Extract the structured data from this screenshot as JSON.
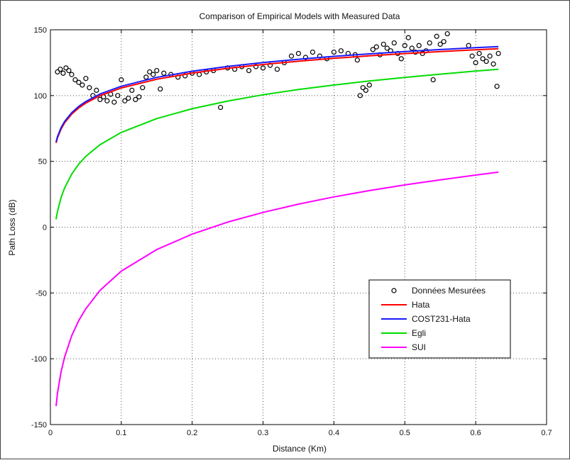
{
  "chart_data": {
    "type": "line",
    "title": "Comparison of Empirical Models with Measured Data",
    "xlabel": "Distance (Km)",
    "ylabel": "Path Loss (dB)",
    "xlim": [
      0,
      0.7
    ],
    "ylim": [
      -150,
      150
    ],
    "x_ticks": [
      "0",
      "0.1",
      "0.2",
      "0.3",
      "0.4",
      "0.5",
      "0.6",
      "0.7"
    ],
    "y_ticks": [
      "-150",
      "-100",
      "-50",
      "0",
      "50",
      "100",
      "150"
    ],
    "grid": true,
    "grid_style": "dotted",
    "legend_position": "lower-right",
    "series": [
      {
        "name": "Données Mesurées",
        "kind": "scatter",
        "marker": "open-circle",
        "color": "#000000",
        "x": [
          0.01,
          0.014,
          0.018,
          0.022,
          0.026,
          0.03,
          0.035,
          0.04,
          0.045,
          0.05,
          0.055,
          0.06,
          0.065,
          0.07,
          0.075,
          0.08,
          0.085,
          0.09,
          0.095,
          0.1,
          0.105,
          0.11,
          0.115,
          0.12,
          0.125,
          0.13,
          0.135,
          0.14,
          0.145,
          0.15,
          0.155,
          0.16,
          0.17,
          0.18,
          0.19,
          0.2,
          0.21,
          0.22,
          0.23,
          0.24,
          0.25,
          0.26,
          0.27,
          0.28,
          0.29,
          0.3,
          0.31,
          0.32,
          0.33,
          0.34,
          0.35,
          0.36,
          0.37,
          0.38,
          0.39,
          0.4,
          0.41,
          0.42,
          0.43,
          0.433,
          0.437,
          0.441,
          0.445,
          0.45,
          0.455,
          0.46,
          0.465,
          0.47,
          0.475,
          0.48,
          0.485,
          0.49,
          0.495,
          0.5,
          0.505,
          0.51,
          0.515,
          0.52,
          0.525,
          0.53,
          0.535,
          0.54,
          0.545,
          0.55,
          0.555,
          0.56,
          0.59,
          0.595,
          0.6,
          0.605,
          0.61,
          0.615,
          0.62,
          0.625,
          0.63,
          0.632
        ],
        "y": [
          118,
          120,
          117,
          121,
          119,
          116,
          112,
          110,
          108,
          113,
          106,
          100,
          104,
          97,
          99,
          96,
          101,
          95,
          100,
          112,
          96,
          98,
          104,
          97,
          99,
          106,
          114,
          118,
          116,
          119,
          105,
          117,
          116,
          114,
          115,
          117,
          116,
          118,
          119,
          91,
          121,
          120,
          122,
          119,
          122,
          121,
          123,
          120,
          125,
          130,
          132,
          129,
          133,
          130,
          128,
          133,
          134,
          132,
          131,
          127,
          100,
          106,
          104,
          108,
          135,
          137,
          131,
          139,
          136,
          134,
          140,
          132,
          128,
          138,
          144,
          136,
          133,
          138,
          132,
          134,
          140,
          112,
          145,
          139,
          141,
          147,
          138,
          130,
          125,
          132,
          128,
          126,
          130,
          124,
          107,
          132
        ]
      },
      {
        "name": "Hata",
        "kind": "line",
        "color": "#ff0000",
        "x": [
          0.008,
          0.01,
          0.015,
          0.02,
          0.03,
          0.04,
          0.05,
          0.07,
          0.1,
          0.15,
          0.2,
          0.25,
          0.3,
          0.35,
          0.4,
          0.45,
          0.5,
          0.55,
          0.6,
          0.632
        ],
        "y": [
          64.0,
          67.9,
          74.5,
          79.3,
          85.9,
          90.6,
          94.3,
          99.9,
          105.8,
          112.4,
          117.1,
          120.7,
          123.6,
          126.1,
          128.3,
          130.2,
          131.9,
          133.4,
          134.8,
          135.6
        ]
      },
      {
        "name": "COST231-Hata",
        "kind": "line",
        "color": "#1a1aff",
        "x": [
          0.008,
          0.01,
          0.015,
          0.02,
          0.03,
          0.04,
          0.05,
          0.07,
          0.1,
          0.15,
          0.2,
          0.25,
          0.3,
          0.35,
          0.4,
          0.45,
          0.5,
          0.55,
          0.6,
          0.632
        ],
        "y": [
          64.8,
          68.8,
          75.5,
          80.3,
          87.0,
          91.8,
          95.5,
          101.2,
          107.1,
          113.8,
          118.5,
          122.1,
          125.1,
          127.6,
          129.8,
          131.7,
          133.4,
          135.0,
          136.4,
          137.2
        ]
      },
      {
        "name": "Egli",
        "kind": "line",
        "color": "#00dd00",
        "x": [
          0.008,
          0.01,
          0.015,
          0.02,
          0.03,
          0.04,
          0.05,
          0.07,
          0.1,
          0.15,
          0.2,
          0.25,
          0.3,
          0.35,
          0.4,
          0.45,
          0.5,
          0.55,
          0.6,
          0.632
        ],
        "y": [
          6.0,
          12.0,
          22.5,
          29.8,
          40.3,
          47.9,
          53.8,
          62.7,
          72.0,
          82.5,
          90.0,
          95.8,
          100.6,
          104.6,
          108.0,
          111.1,
          113.8,
          116.3,
          118.6,
          120.0
        ]
      },
      {
        "name": "SUI",
        "kind": "line",
        "color": "#ff00ff",
        "x": [
          0.008,
          0.01,
          0.015,
          0.02,
          0.03,
          0.04,
          0.05,
          0.07,
          0.1,
          0.15,
          0.2,
          0.25,
          0.3,
          0.35,
          0.4,
          0.45,
          0.5,
          0.55,
          0.6,
          0.632
        ],
        "y": [
          -136.0,
          -126.0,
          -110.0,
          -98.7,
          -82.5,
          -71.0,
          -62.0,
          -48.0,
          -33.4,
          -17.0,
          -5.3,
          3.8,
          11.2,
          17.5,
          23.0,
          27.8,
          32.1,
          36.0,
          39.6,
          41.8
        ]
      }
    ]
  }
}
